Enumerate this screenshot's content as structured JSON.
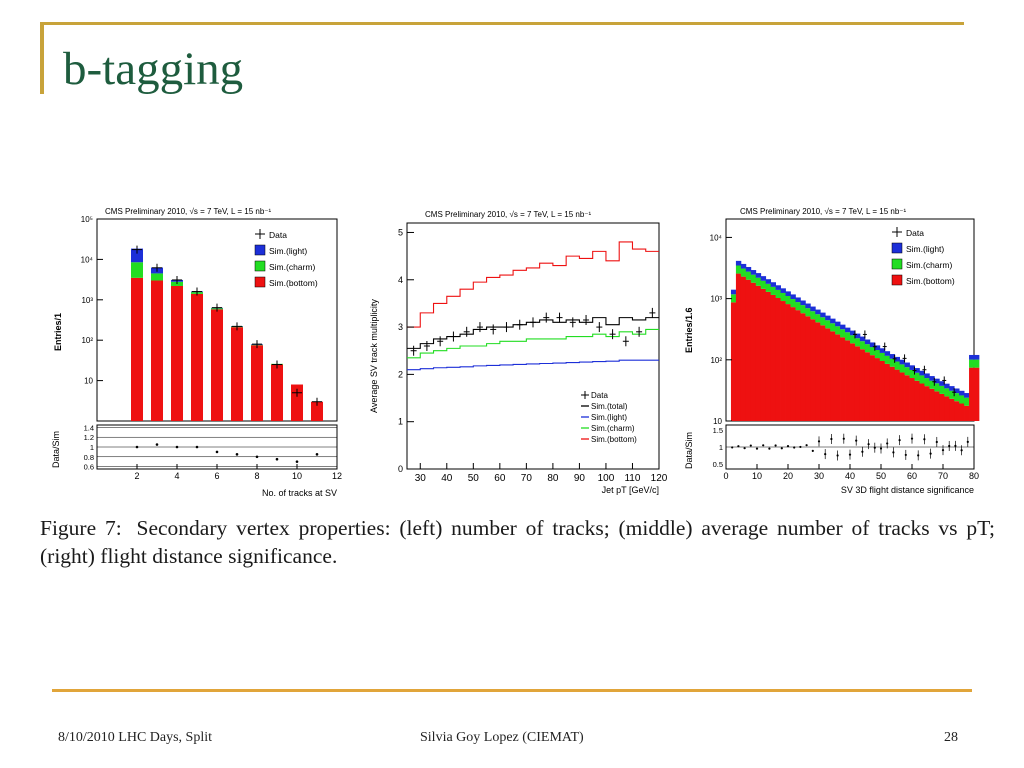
{
  "slide": {
    "title": "b-tagging",
    "caption": {
      "label": "Figure 7:",
      "text": "Secondary vertex properties: (left) number of tracks; (middle) average number of tracks vs pT; (right) flight distance significance."
    },
    "footer": {
      "left": "8/10/2010 LHC Days, Split",
      "center": "Silvia Goy Lopez (CIEMAT)",
      "right": "28"
    }
  },
  "colors": {
    "title": "#1e5c3e",
    "frame": "#c8a33a",
    "footer_line": "#e1a53a",
    "light": "#1c2fd8",
    "charm": "#22dd22",
    "bottom": "#ee1111",
    "data": "#000000"
  },
  "chart_data": [
    {
      "type": "bar",
      "stacked": true,
      "header": "CMS Preliminary 2010,  √s = 7 TeV,  L = 15 nb⁻¹",
      "xlabel": "No. of tracks at SV",
      "ylabel": "Entries/1",
      "ratio_ylabel": "Data/Sim",
      "yscale": "log",
      "ylim": [
        1,
        100000
      ],
      "xlim": [
        0,
        12
      ],
      "x_ticks": [
        "2",
        "4",
        "6",
        "8",
        "10",
        "12"
      ],
      "y_tick_labels": [
        "10⁵",
        "10⁴",
        "10³",
        "10²",
        "10"
      ],
      "ratio_ylim": [
        0.55,
        1.45
      ],
      "ratio_tick_labels": [
        "1.4",
        "1.2",
        "1",
        "0.8",
        "0.6"
      ],
      "legend": [
        "Data",
        "Sim.(light)",
        "Sim.(charm)",
        "Sim.(bottom)"
      ],
      "categories": [
        2,
        3,
        4,
        5,
        6,
        7,
        8,
        9,
        10,
        11
      ],
      "series": [
        {
          "name": "Sim.(bottom)",
          "values": [
            3500,
            3000,
            2200,
            1400,
            580,
            210,
            75,
            25,
            8,
            3
          ]
        },
        {
          "name": "Sim.(charm)",
          "values": [
            5000,
            1500,
            600,
            150,
            40,
            10,
            3,
            1,
            0,
            0
          ]
        },
        {
          "name": "Sim.(light)",
          "values": [
            10000,
            1800,
            300,
            60,
            15,
            3,
            1,
            0,
            0,
            0
          ]
        }
      ],
      "data": [
        17500,
        6200,
        3100,
        1600,
        640,
        220,
        80,
        25,
        5,
        3
      ],
      "ratio": [
        1.0,
        1.05,
        1.0,
        1.0,
        0.9,
        0.85,
        0.8,
        0.75,
        0.7,
        0.85
      ]
    },
    {
      "type": "line",
      "header": "CMS Preliminary 2010,  √s = 7 TeV,  L = 15 nb⁻¹",
      "xlabel": "Jet pT [GeV/c]",
      "ylabel": "Average SV track multiplicity",
      "xlim": [
        25,
        120
      ],
      "ylim": [
        0,
        5.2
      ],
      "x_ticks": [
        "30",
        "40",
        "50",
        "60",
        "70",
        "80",
        "90",
        "100",
        "110",
        "120"
      ],
      "y_ticks": [
        "0",
        "1",
        "2",
        "3",
        "4",
        "5"
      ],
      "legend": [
        "Data",
        "Sim.(total)",
        "Sim.(light)",
        "Sim.(charm)",
        "Sim.(bottom)"
      ],
      "x": [
        27.5,
        32.5,
        37.5,
        42.5,
        47.5,
        52.5,
        57.5,
        62.5,
        67.5,
        72.5,
        77.5,
        82.5,
        87.5,
        92.5,
        97.5,
        102.5,
        107.5,
        112.5,
        117.5
      ],
      "series": [
        {
          "name": "Sim.(bottom)",
          "values": [
            3.0,
            3.3,
            3.5,
            3.65,
            3.8,
            3.95,
            4.05,
            4.1,
            4.2,
            4.25,
            4.35,
            4.3,
            4.5,
            4.45,
            4.6,
            4.4,
            4.8,
            4.65,
            4.6
          ]
        },
        {
          "name": "Sim.(total)",
          "values": [
            2.55,
            2.65,
            2.75,
            2.8,
            2.85,
            2.95,
            3.0,
            3.0,
            3.05,
            3.1,
            3.15,
            3.1,
            3.15,
            3.1,
            3.2,
            3.05,
            3.2,
            3.15,
            3.2
          ]
        },
        {
          "name": "Sim.(charm)",
          "values": [
            2.35,
            2.45,
            2.5,
            2.55,
            2.6,
            2.6,
            2.65,
            2.7,
            2.7,
            2.75,
            2.75,
            2.75,
            2.8,
            2.8,
            2.85,
            2.8,
            2.9,
            2.85,
            2.95
          ]
        },
        {
          "name": "Sim.(light)",
          "values": [
            2.1,
            2.12,
            2.14,
            2.15,
            2.16,
            2.18,
            2.19,
            2.2,
            2.21,
            2.22,
            2.23,
            2.24,
            2.25,
            2.26,
            2.27,
            2.28,
            2.3,
            2.3,
            2.3
          ]
        }
      ],
      "data": [
        2.5,
        2.6,
        2.7,
        2.8,
        2.9,
        3.0,
        2.95,
        3.0,
        3.05,
        3.1,
        3.2,
        3.2,
        3.1,
        3.15,
        3.0,
        2.85,
        2.7,
        2.9,
        3.3
      ]
    },
    {
      "type": "bar",
      "stacked": true,
      "header": "CMS Preliminary 2010,  √s = 7 TeV,  L = 15 nb⁻¹",
      "xlabel": "SV 3D flight distance significance",
      "ylabel": "Entries/1.6",
      "ratio_ylabel": "Data/Sim",
      "yscale": "log",
      "ylim": [
        10,
        20000
      ],
      "xlim": [
        0,
        80
      ],
      "x_ticks": [
        "0",
        "10",
        "20",
        "30",
        "40",
        "50",
        "60",
        "70",
        "80"
      ],
      "y_tick_labels": [
        "10⁴",
        "10³",
        "10²",
        "10"
      ],
      "ratio_ylim": [
        0.35,
        1.65
      ],
      "ratio_tick_labels": [
        "1.5",
        "1",
        "0.5"
      ],
      "legend": [
        "Data",
        "Sim.(light)",
        "Sim.(charm)",
        "Sim.(bottom)"
      ],
      "notes": "Stacked distribution falls from ~5000 at x≈3 to ~20 at x≈78 with an overflow spike in the last bin; bins generated analytically in the drawing script.",
      "ratio_scatter": "Ratio points scatter around 1 with growing spread at high significance."
    }
  ]
}
